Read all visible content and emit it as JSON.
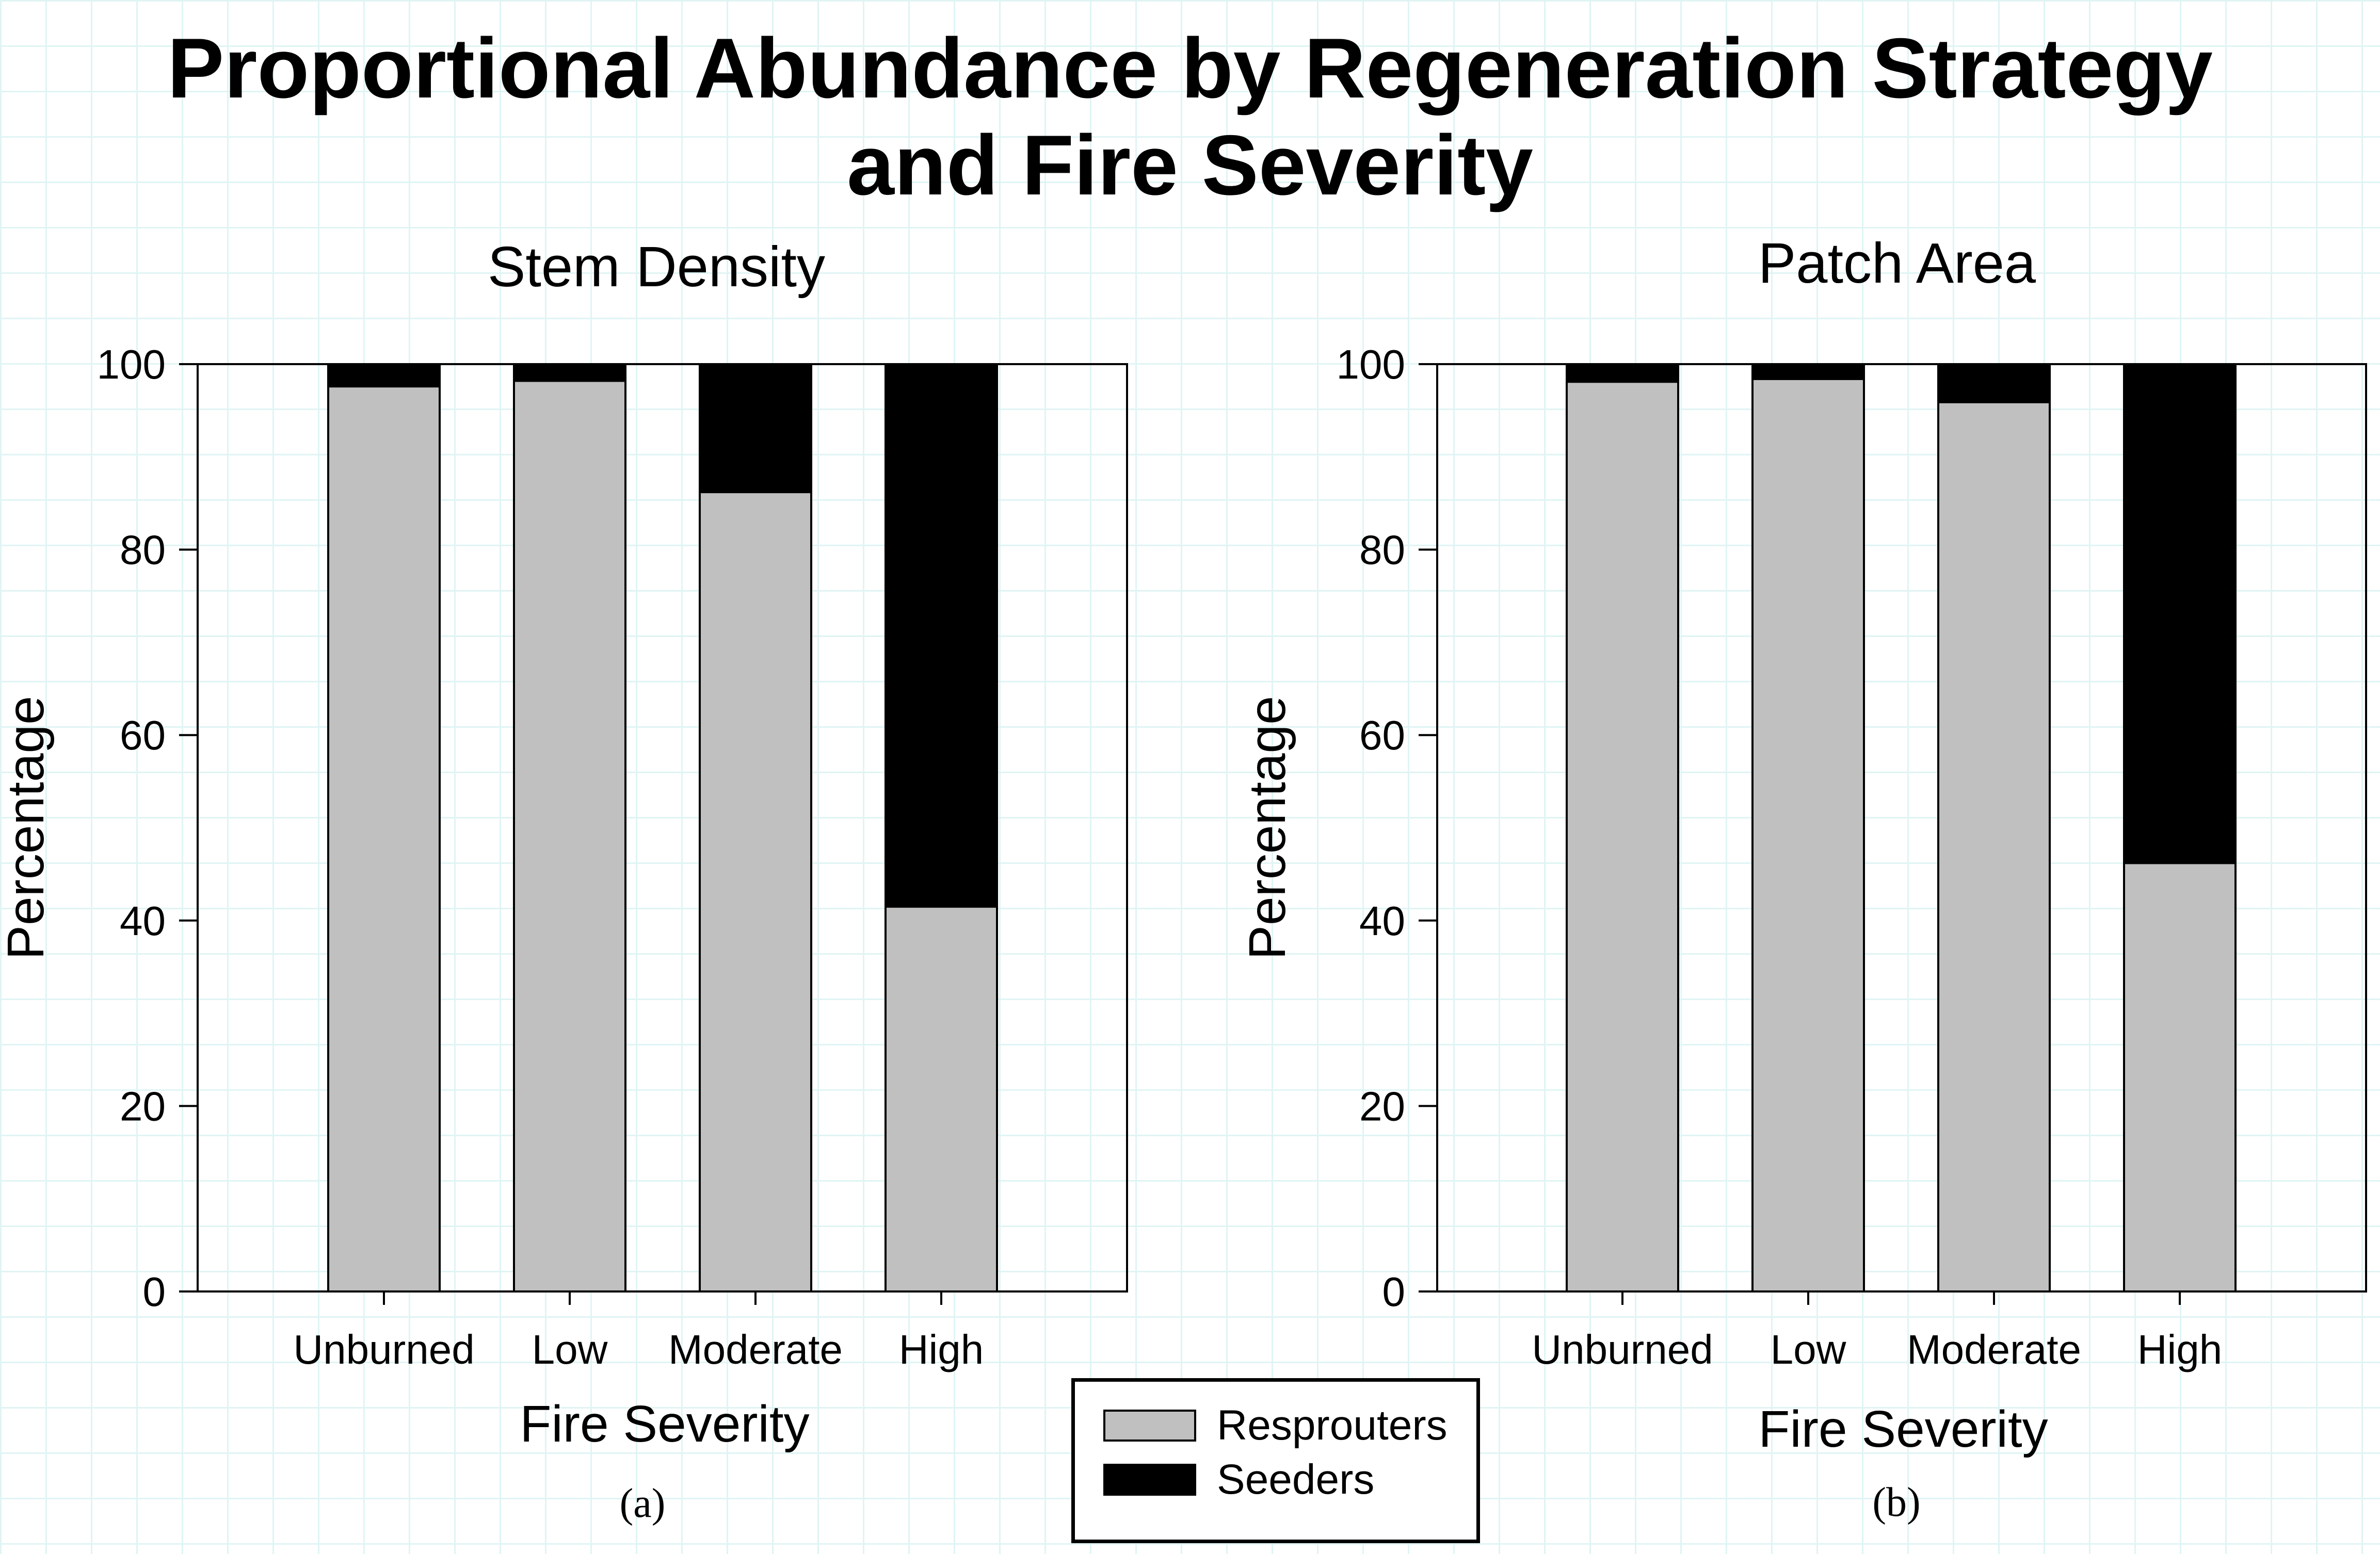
{
  "title_line1": "Proportional Abundance by Regeneration Strategy",
  "title_line2": "and Fire Severity",
  "captions": [
    "(a)",
    "(b)"
  ],
  "legend": [
    {
      "label": "Resprouters",
      "color": "#c0c0c0"
    },
    {
      "label": "Seeders",
      "color": "#000000"
    }
  ],
  "colors": {
    "resprouters": "#c0c0c0",
    "seeders": "#000000",
    "axis": "#000000"
  },
  "chart_data": [
    {
      "type": "bar",
      "stacked": true,
      "title": "Stem Density",
      "xlabel": "Fire Severity",
      "ylabel": "Percentage",
      "categories": [
        "Unburned",
        "Low",
        "Moderate",
        "High"
      ],
      "ylim": [
        0,
        100
      ],
      "yticks": [
        0,
        20,
        40,
        60,
        80,
        100
      ],
      "series": [
        {
          "name": "Resprouters",
          "values": [
            97.6,
            98.2,
            86.2,
            41.5
          ]
        },
        {
          "name": "Seeders",
          "values": [
            2.4,
            1.8,
            13.8,
            58.5
          ]
        }
      ]
    },
    {
      "type": "bar",
      "stacked": true,
      "title": "Patch Area",
      "xlabel": "Fire Severity",
      "ylabel": "Percentage",
      "categories": [
        "Unburned",
        "Low",
        "Moderate",
        "High"
      ],
      "ylim": [
        0,
        100
      ],
      "yticks": [
        0,
        20,
        40,
        60,
        80,
        100
      ],
      "series": [
        {
          "name": "Resprouters",
          "values": [
            98.1,
            98.4,
            95.9,
            46.2
          ]
        },
        {
          "name": "Seeders",
          "values": [
            1.9,
            1.6,
            4.1,
            53.8
          ]
        }
      ]
    }
  ]
}
